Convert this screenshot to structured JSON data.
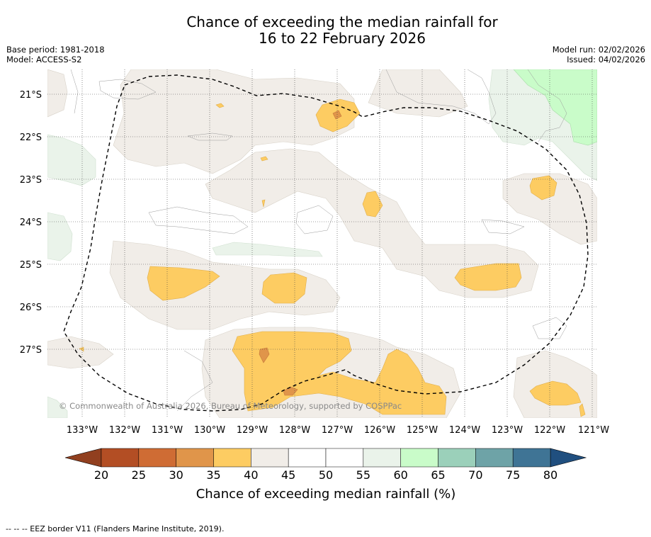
{
  "title": {
    "line1": "Chance of exceeding the median rainfall for",
    "line2": "16 to 22 February 2026"
  },
  "meta_left": {
    "base_period": "Base period: 1981-2018",
    "model": "Model: ACCESS-S2"
  },
  "meta_right": {
    "model_run": "Model run: 02/02/2026",
    "issued": "Issued: 04/02/2026"
  },
  "map": {
    "lon_labels": [
      "133°W",
      "132°W",
      "131°W",
      "130°W",
      "129°W",
      "128°W",
      "127°W",
      "126°W",
      "125°W",
      "124°W",
      "123°W",
      "122°W",
      "121°W"
    ],
    "lat_labels": [
      "21°S",
      "22°S",
      "23°S",
      "24°S",
      "25°S",
      "26°S",
      "27°S"
    ],
    "attribution": "© Commonwealth of Australia 2026, Bureau of Meteorology, supported by COSPPac"
  },
  "colorbar": {
    "ticks": [
      "20",
      "25",
      "30",
      "35",
      "40",
      "45",
      "50",
      "55",
      "60",
      "65",
      "70",
      "75",
      "80"
    ],
    "colors": [
      "#b34e24",
      "#cf6c34",
      "#e0954a",
      "#fdcc62",
      "#f1ede8",
      "#ffffff",
      "#ffffff",
      "#eaf3ea",
      "#c9fcc9",
      "#9bd0ba",
      "#6ea3a7",
      "#3f7495"
    ],
    "under_color": "#913f1f",
    "over_color": "#204f7f",
    "title": "Chance of exceeding median rainfall (%)"
  },
  "footer": "--  --  -- EEZ border V11 (Flanders Marine Institute, 2019)."
}
